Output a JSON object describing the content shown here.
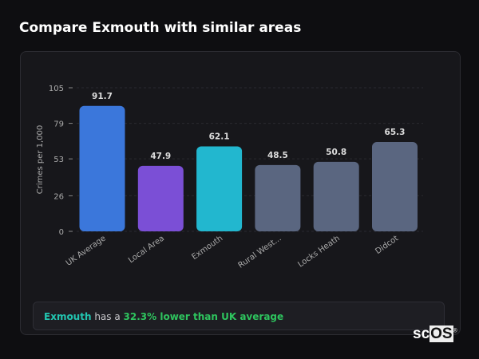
{
  "header": {
    "title": "Compare Exmouth with similar areas"
  },
  "chart_data": {
    "type": "bar",
    "ylabel": "Crimes per 1,000",
    "xlabel": "",
    "ylim": [
      0,
      105
    ],
    "yticks": [
      0,
      26,
      53,
      79,
      105
    ],
    "categories": [
      "UK Average",
      "Local Area",
      "Exmouth",
      "Rural West...",
      "Locks Heath",
      "Didcot"
    ],
    "values": [
      91.7,
      47.9,
      62.1,
      48.5,
      50.8,
      65.3
    ],
    "value_labels": [
      "91.7",
      "47.9",
      "62.1",
      "48.5",
      "50.8",
      "65.3"
    ],
    "colors": [
      "#3b77db",
      "#7b4fd6",
      "#22b7cf",
      "#5a6680",
      "#5a6680",
      "#5a6680"
    ],
    "grid": true
  },
  "summary": {
    "area": "Exmouth",
    "text": " has a ",
    "highlight": "32.3% lower than UK average",
    "area_color": "#22c5b0",
    "highlight_color": "#2ec45e"
  },
  "logo": {
    "text": "scOS"
  }
}
